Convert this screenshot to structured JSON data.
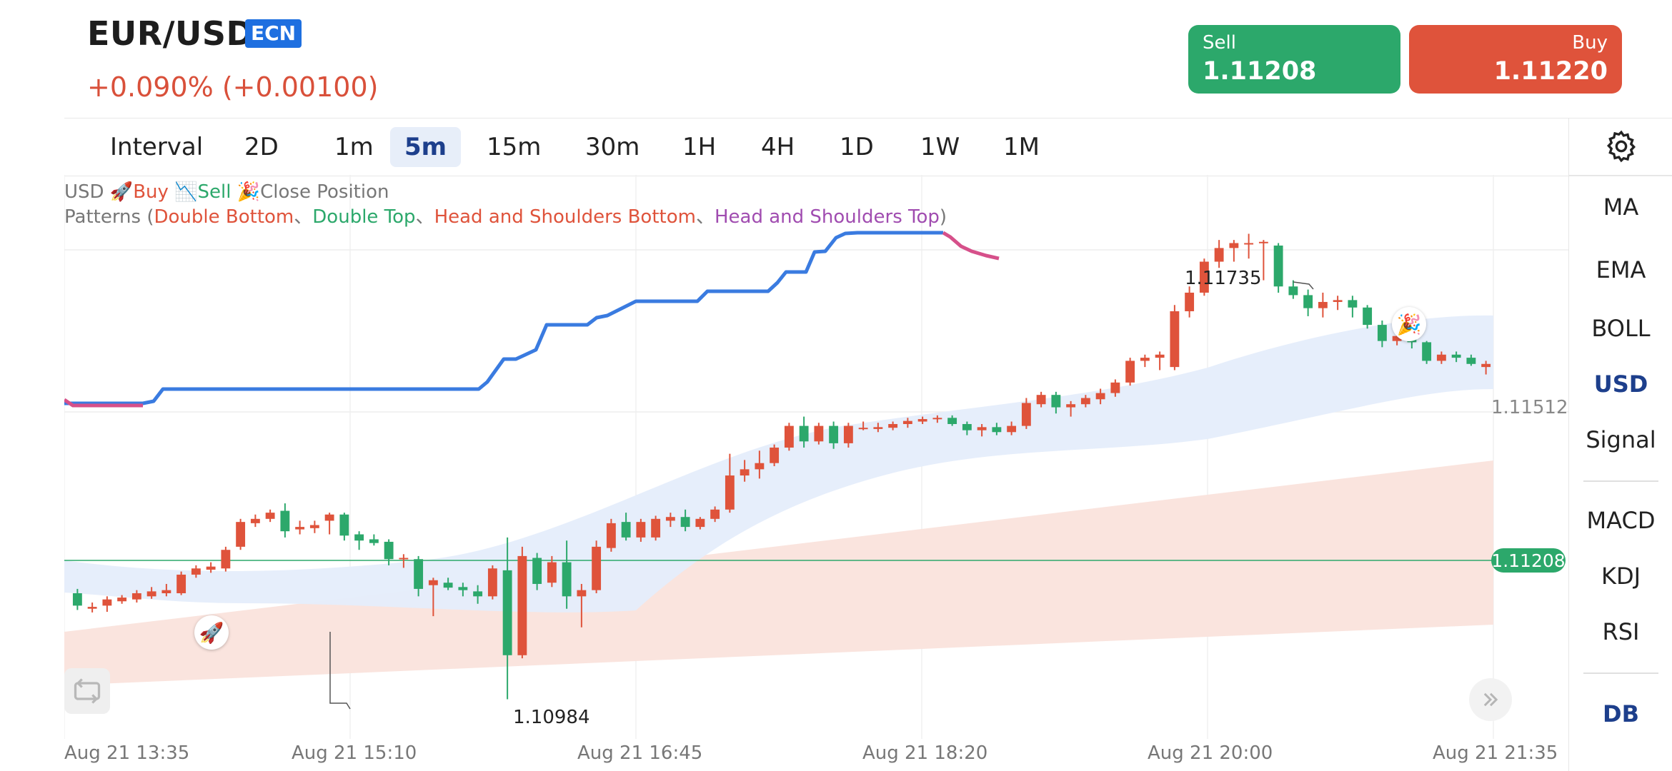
{
  "header": {
    "symbol": "EUR/USD",
    "badge": "ECN",
    "change": "+0.090% (+0.00100)"
  },
  "trade": {
    "sell_label": "Sell",
    "sell_price": "1.11208",
    "buy_label": "Buy",
    "buy_price": "1.11220"
  },
  "intervals": {
    "label": "Interval",
    "items": [
      "2D",
      "1m",
      "5m",
      "15m",
      "30m",
      "1H",
      "4H",
      "1D",
      "1W",
      "1M"
    ],
    "active": "5m"
  },
  "indicators": {
    "items": [
      "MA",
      "EMA",
      "BOLL",
      "USD",
      "Signal",
      "MACD",
      "KDJ",
      "RSI",
      "DB"
    ],
    "active": [
      "USD",
      "DB"
    ]
  },
  "legend": {
    "line1": {
      "prefix": "USD",
      "buy": "Buy",
      "sell": "Sell",
      "close": "Close Position"
    },
    "line2": {
      "prefix": "Patterns (",
      "p1": "Double Bottom",
      "sep": "、",
      "p2": "Double Top",
      "p3": "Head and Shoulders Bottom",
      "p4": "Head and Shoulders Top",
      "suffix": ")"
    }
  },
  "colors": {
    "up": "#df533b",
    "down": "#2ca86b",
    "signal_line": "#3a7be0",
    "signal_pink": "#d6508a",
    "cloud_blue": "#e5edfb",
    "cloud_red": "#f9e1da",
    "accent": "#1d3f8c"
  },
  "chart_data": {
    "type": "candlestick",
    "x_labels": [
      "Aug 21 13:35",
      "Aug 21 15:10",
      "Aug 21 16:45",
      "Aug 21 18:20",
      "Aug 21 20:00",
      "Aug 21 21:35"
    ],
    "price_labels": {
      "current": "1.11208",
      "last_right": "1.11512",
      "high": "1.11735",
      "low": "1.10984"
    },
    "ylim": [
      1.1092,
      1.1183
    ],
    "candles": [
      [
        1.11155,
        1.11162,
        1.11128,
        1.11135
      ],
      [
        1.1113,
        1.1114,
        1.11124,
        1.11133
      ],
      [
        1.11135,
        1.1115,
        1.11125,
        1.11145
      ],
      [
        1.11142,
        1.11152,
        1.11138,
        1.11148
      ],
      [
        1.11145,
        1.1116,
        1.1114,
        1.11155
      ],
      [
        1.1115,
        1.11165,
        1.11146,
        1.11158
      ],
      [
        1.11155,
        1.1117,
        1.1115,
        1.1116
      ],
      [
        1.11155,
        1.1119,
        1.11152,
        1.11185
      ],
      [
        1.11185,
        1.112,
        1.1118,
        1.11195
      ],
      [
        1.11193,
        1.11205,
        1.11188,
        1.11198
      ],
      [
        1.11195,
        1.1123,
        1.1119,
        1.11225
      ],
      [
        1.1123,
        1.11275,
        1.11225,
        1.1127
      ],
      [
        1.11268,
        1.11282,
        1.11262,
        1.11275
      ],
      [
        1.11275,
        1.1129,
        1.1127,
        1.11285
      ],
      [
        1.11288,
        1.113,
        1.11245,
        1.11255
      ],
      [
        1.11258,
        1.11272,
        1.1125,
        1.11262
      ],
      [
        1.1126,
        1.11272,
        1.11252,
        1.11265
      ],
      [
        1.11272,
        1.11285,
        1.1125,
        1.11282
      ],
      [
        1.11282,
        1.11285,
        1.1124,
        1.11248
      ],
      [
        1.1125,
        1.11255,
        1.11225,
        1.1124
      ],
      [
        1.11242,
        1.1125,
        1.11232,
        1.11236
      ],
      [
        1.11238,
        1.11242,
        1.112,
        1.1121
      ],
      [
        1.1121,
        1.11218,
        1.11196,
        1.11212
      ],
      [
        1.1121,
        1.11215,
        1.1115,
        1.11162
      ],
      [
        1.11168,
        1.1118,
        1.11118,
        1.11176
      ],
      [
        1.11172,
        1.1118,
        1.1116,
        1.11164
      ],
      [
        1.11165,
        1.11172,
        1.1115,
        1.1116
      ],
      [
        1.11158,
        1.11168,
        1.11138,
        1.1115
      ],
      [
        1.1115,
        1.112,
        1.11145,
        1.11195
      ],
      [
        1.11192,
        1.11245,
        1.10984,
        1.11055
      ],
      [
        1.11055,
        1.1123,
        1.1105,
        1.11215
      ],
      [
        1.11212,
        1.1122,
        1.1116,
        1.1117
      ],
      [
        1.11172,
        1.11215,
        1.11165,
        1.11205
      ],
      [
        1.11205,
        1.1124,
        1.1113,
        1.1115
      ],
      [
        1.1115,
        1.1117,
        1.111,
        1.1116
      ],
      [
        1.1116,
        1.1124,
        1.11155,
        1.1123
      ],
      [
        1.11228,
        1.11275,
        1.11222,
        1.11268
      ],
      [
        1.1127,
        1.11285,
        1.1124,
        1.11245
      ],
      [
        1.11245,
        1.11275,
        1.11238,
        1.1127
      ],
      [
        1.11245,
        1.1128,
        1.1124,
        1.11275
      ],
      [
        1.11272,
        1.11285,
        1.11262,
        1.11278
      ],
      [
        1.11278,
        1.1129,
        1.11255,
        1.11262
      ],
      [
        1.11262,
        1.11278,
        1.11258,
        1.11275
      ],
      [
        1.11275,
        1.11295,
        1.1127,
        1.1129
      ],
      [
        1.1129,
        1.1138,
        1.11285,
        1.11345
      ],
      [
        1.11345,
        1.1137,
        1.11335,
        1.11355
      ],
      [
        1.11355,
        1.11385,
        1.1134,
        1.11365
      ],
      [
        1.11365,
        1.11395,
        1.1136,
        1.1139
      ],
      [
        1.1139,
        1.1143,
        1.11385,
        1.11425
      ],
      [
        1.11425,
        1.1144,
        1.1139,
        1.114
      ],
      [
        1.114,
        1.1143,
        1.11395,
        1.11425
      ],
      [
        1.11425,
        1.11432,
        1.11388,
        1.11397
      ],
      [
        1.11397,
        1.1143,
        1.1139,
        1.11425
      ],
      [
        1.1142,
        1.11432,
        1.11418,
        1.11422
      ],
      [
        1.1142,
        1.1143,
        1.11415,
        1.11423
      ],
      [
        1.11422,
        1.11432,
        1.11418,
        1.11428
      ],
      [
        1.11428,
        1.11438,
        1.11422,
        1.11433
      ],
      [
        1.11432,
        1.1144,
        1.11428,
        1.11436
      ],
      [
        1.11436,
        1.11442,
        1.1143,
        1.11438
      ],
      [
        1.11438,
        1.11442,
        1.11425,
        1.11428
      ],
      [
        1.11428,
        1.11432,
        1.1141,
        1.11418
      ],
      [
        1.11418,
        1.11428,
        1.11408,
        1.11423
      ],
      [
        1.11423,
        1.1143,
        1.1141,
        1.11415
      ],
      [
        1.11415,
        1.11432,
        1.1141,
        1.11425
      ],
      [
        1.11425,
        1.1147,
        1.1142,
        1.11462
      ],
      [
        1.1146,
        1.1148,
        1.11455,
        1.11475
      ],
      [
        1.11475,
        1.1148,
        1.11445,
        1.11455
      ],
      [
        1.11455,
        1.11465,
        1.1144,
        1.1146
      ],
      [
        1.1146,
        1.11475,
        1.11455,
        1.1147
      ],
      [
        1.11468,
        1.11485,
        1.1146,
        1.11478
      ],
      [
        1.11478,
        1.115,
        1.11472,
        1.11495
      ],
      [
        1.11495,
        1.11535,
        1.1149,
        1.1153
      ],
      [
        1.1153,
        1.1154,
        1.1152,
        1.11535
      ],
      [
        1.11535,
        1.11545,
        1.11515,
        1.1154
      ],
      [
        1.1152,
        1.1162,
        1.11515,
        1.1161
      ],
      [
        1.1161,
        1.1165,
        1.116,
        1.1164
      ],
      [
        1.1164,
        1.11695,
        1.11635,
        1.1169
      ],
      [
        1.1169,
        1.11725,
        1.1168,
        1.11712
      ],
      [
        1.11712,
        1.11725,
        1.1169,
        1.1172
      ],
      [
        1.1172,
        1.11735,
        1.11695,
        1.1172
      ],
      [
        1.1172,
        1.11725,
        1.1166,
        1.11722
      ],
      [
        1.11716,
        1.1172,
        1.1164,
        1.1165
      ],
      [
        1.1165,
        1.1166,
        1.1163,
        1.11636
      ],
      [
        1.11636,
        1.11645,
        1.11602,
        1.11615
      ],
      [
        1.11615,
        1.1164,
        1.116,
        1.11625
      ],
      [
        1.11625,
        1.11635,
        1.11612,
        1.11628
      ],
      [
        1.11628,
        1.11635,
        1.116,
        1.11616
      ],
      [
        1.11616,
        1.1162,
        1.11582,
        1.11588
      ],
      [
        1.11588,
        1.11595,
        1.11552,
        1.11562
      ],
      [
        1.11562,
        1.1158,
        1.11555,
        1.1157
      ],
      [
        1.1157,
        1.11575,
        1.1155,
        1.1156
      ],
      [
        1.1156,
        1.11562,
        1.11525,
        1.1153
      ],
      [
        1.1153,
        1.11545,
        1.11525,
        1.1154
      ],
      [
        1.1154,
        1.11545,
        1.11528,
        1.11535
      ],
      [
        1.11535,
        1.1154,
        1.11522,
        1.11525
      ],
      [
        1.1152,
        1.1153,
        1.11508,
        1.11525
      ]
    ]
  }
}
